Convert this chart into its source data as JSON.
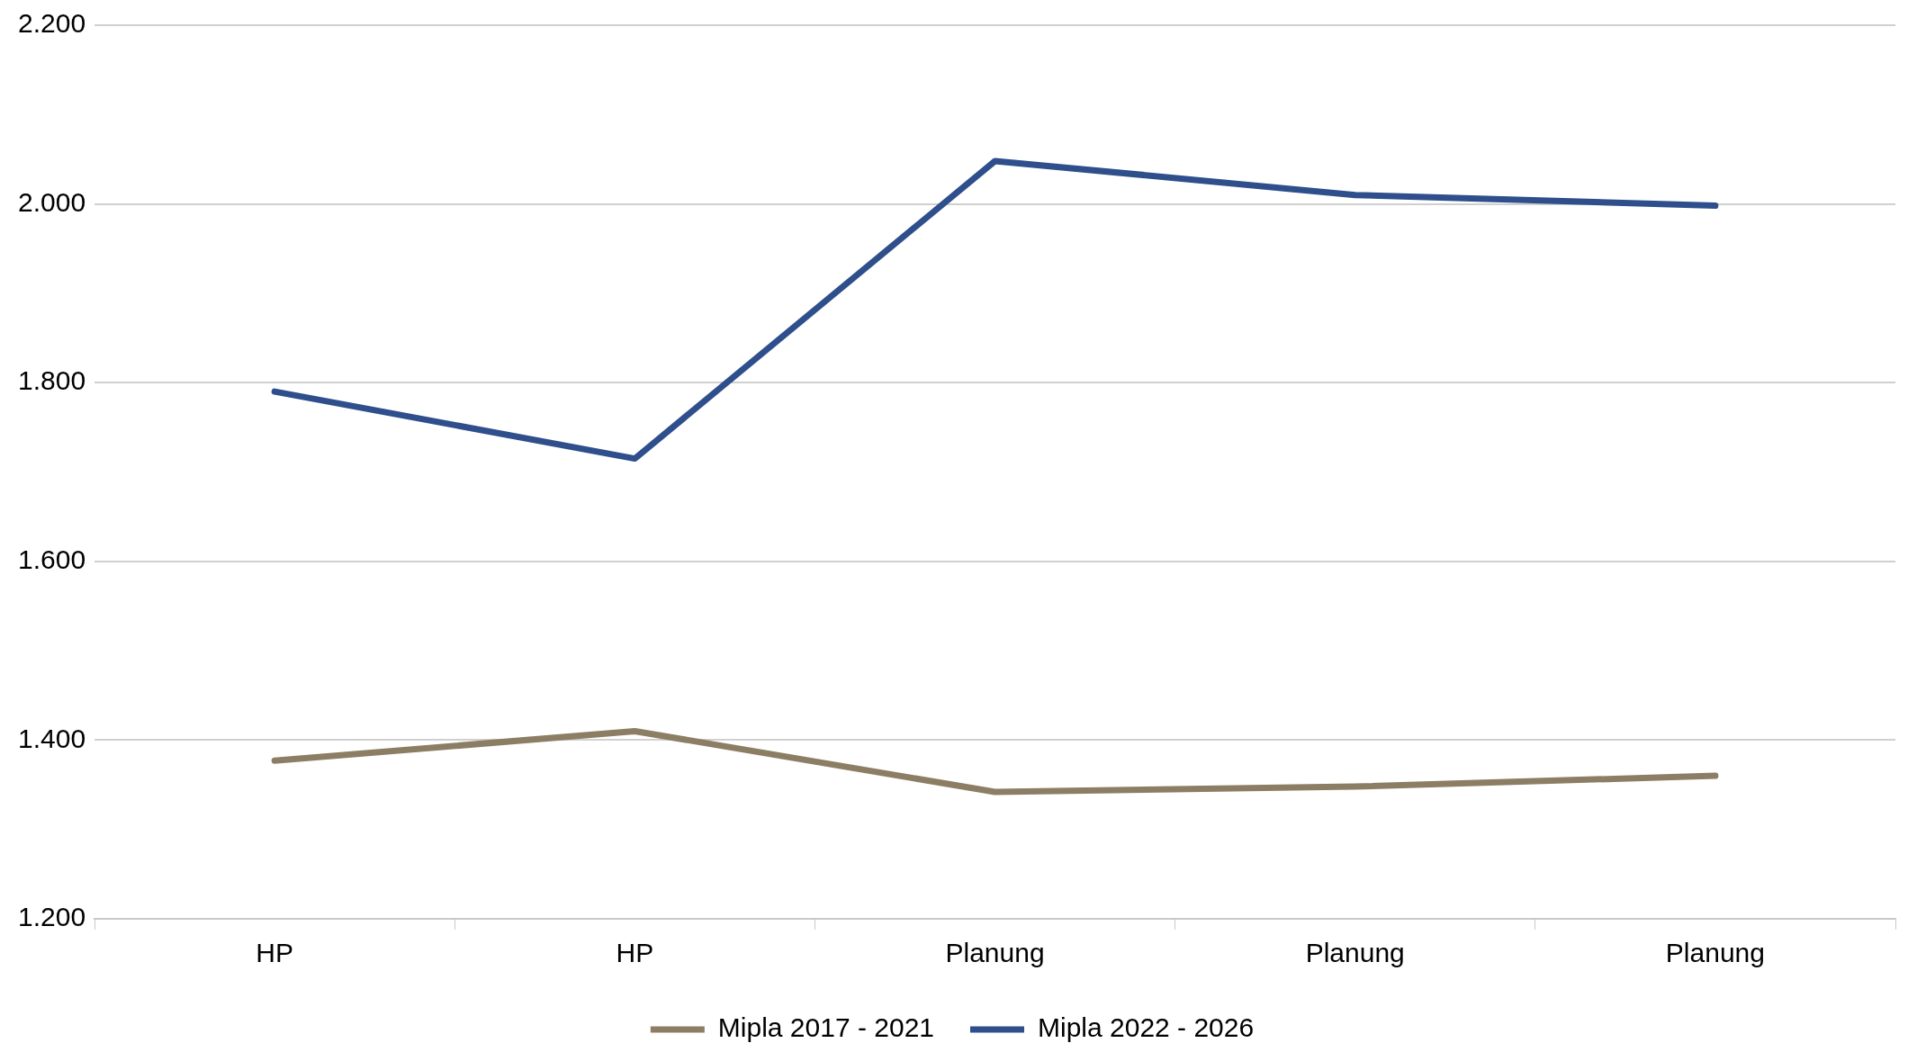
{
  "chart_data": {
    "type": "line",
    "categories": [
      "HP",
      "HP",
      "Planung",
      "Planung",
      "Planung"
    ],
    "series": [
      {
        "name": "Mipla 2017 - 2021",
        "color": "#8c7e64",
        "values": [
          1377,
          1410,
          1342,
          1348,
          1360
        ]
      },
      {
        "name": "Mipla 2022 - 2026",
        "color": "#2e4e8c",
        "values": [
          1790,
          1715,
          2048,
          2010,
          1998
        ]
      }
    ],
    "ylim": [
      1200,
      2200
    ],
    "yticks": [
      {
        "value": 1200,
        "label": "1.200"
      },
      {
        "value": 1400,
        "label": "1.400"
      },
      {
        "value": 1600,
        "label": "1.600"
      },
      {
        "value": 1800,
        "label": "1.800"
      },
      {
        "value": 2000,
        "label": "2.000"
      },
      {
        "value": 2200,
        "label": "2.200"
      }
    ],
    "grid": "y",
    "legend": "bottom",
    "marker": "none",
    "line_style": "solid"
  }
}
